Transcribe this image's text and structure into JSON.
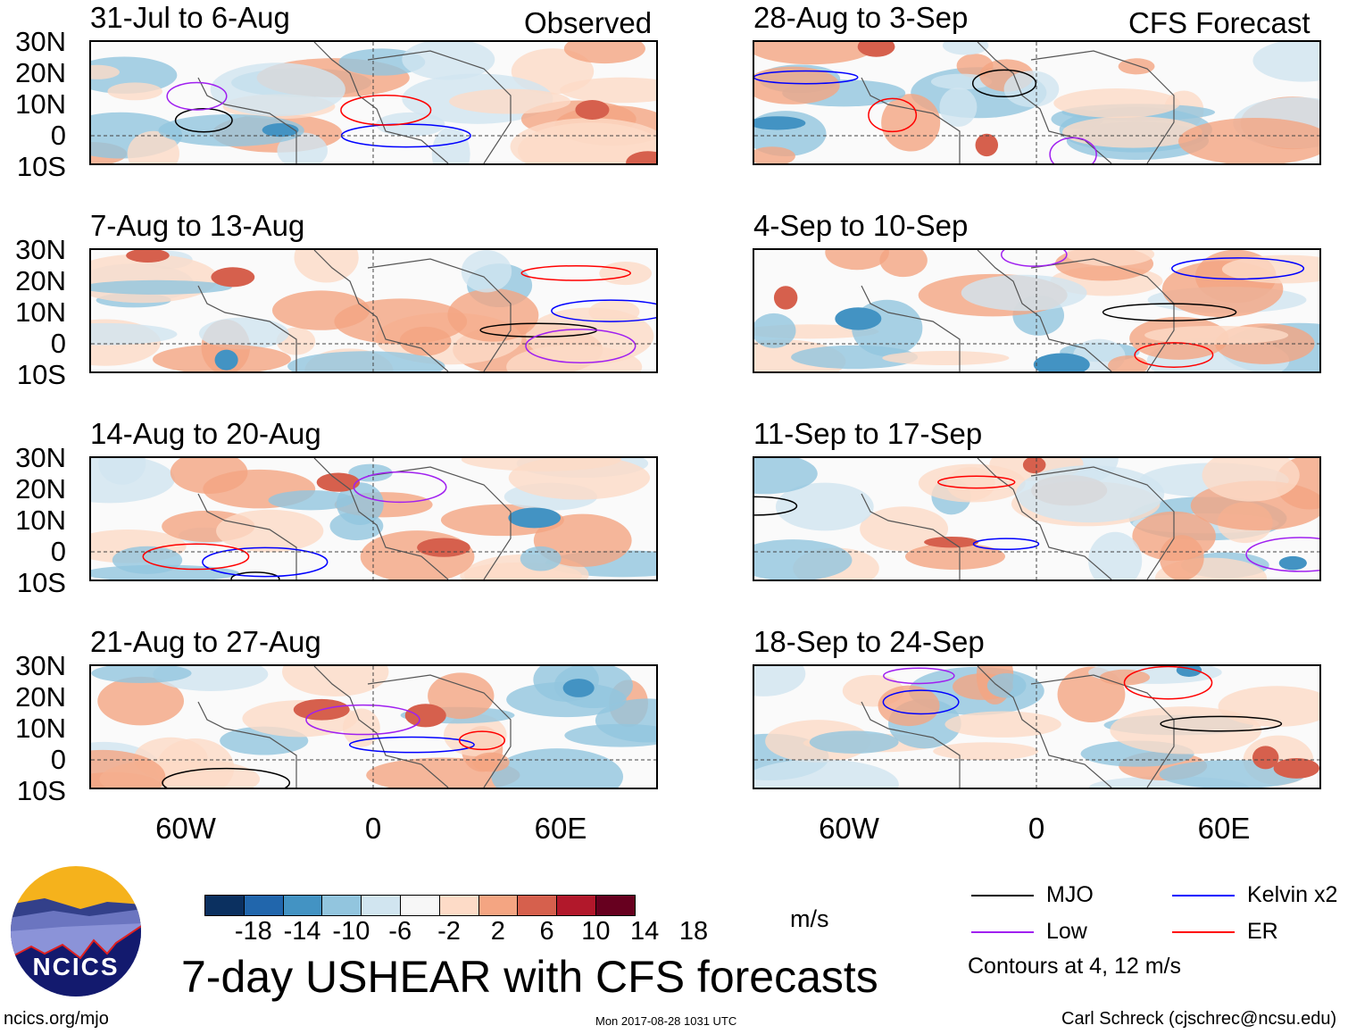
{
  "title": "7-day USHEAR with CFS forecasts",
  "units": "m/s",
  "column_labels": {
    "observed": "Observed",
    "forecast": "CFS Forecast"
  },
  "lat_labels": [
    "30N",
    "20N",
    "10N",
    "0",
    "10S"
  ],
  "lon_labels": [
    "60W",
    "0",
    "60E"
  ],
  "panels_left": [
    {
      "title": "31-Jul to 6-Aug"
    },
    {
      "title": "7-Aug to 13-Aug"
    },
    {
      "title": "14-Aug to 20-Aug"
    },
    {
      "title": "21-Aug to 27-Aug"
    }
  ],
  "panels_right": [
    {
      "title": "28-Aug to 3-Sep"
    },
    {
      "title": "4-Sep to 10-Sep"
    },
    {
      "title": "11-Sep to 17-Sep"
    },
    {
      "title": "18-Sep to 24-Sep"
    }
  ],
  "colorbar": {
    "colors": [
      "#0b3060",
      "#2166ac",
      "#4393c3",
      "#92c5de",
      "#d1e5f0",
      "#f7f7f7",
      "#fddbc7",
      "#f4a582",
      "#d6604d",
      "#b2182b",
      "#67001f"
    ],
    "ticks": [
      "-18",
      "-14",
      "-10",
      "-6",
      "-2",
      "2",
      "6",
      "10",
      "14",
      "18"
    ]
  },
  "legend": [
    {
      "label": "MJO",
      "color": "#000000"
    },
    {
      "label": "Kelvin x2",
      "color": "#0000ff"
    },
    {
      "label": "Low",
      "color": "#a020f0"
    },
    {
      "label": "ER",
      "color": "#ff0000"
    }
  ],
  "contours_note": "Contours at 4, 12 m/s",
  "logo_text": "NCICS",
  "footer": {
    "url": "ncics.org/mjo",
    "timestamp": "Mon 2017-08-28 1031 UTC",
    "credit": "Carl Schreck (cjschrec@ncsu.edu)"
  }
}
